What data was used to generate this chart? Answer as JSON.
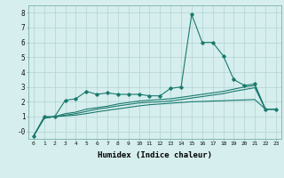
{
  "title": "",
  "xlabel": "Humidex (Indice chaleur)",
  "x": [
    0,
    1,
    2,
    3,
    4,
    5,
    6,
    7,
    8,
    9,
    10,
    11,
    12,
    13,
    14,
    15,
    16,
    17,
    18,
    19,
    20,
    21,
    22,
    23
  ],
  "line1": [
    -0.3,
    1.0,
    1.0,
    2.1,
    2.2,
    2.7,
    2.5,
    2.6,
    2.5,
    2.5,
    2.5,
    2.4,
    2.4,
    2.9,
    3.0,
    7.9,
    6.0,
    6.0,
    5.1,
    3.5,
    3.1,
    3.2,
    1.5,
    1.5
  ],
  "line2": [
    -0.3,
    0.9,
    1.0,
    1.2,
    1.3,
    1.5,
    1.6,
    1.7,
    1.85,
    1.95,
    2.05,
    2.1,
    2.15,
    2.2,
    2.3,
    2.4,
    2.5,
    2.6,
    2.7,
    2.85,
    3.0,
    3.1,
    1.5,
    1.5
  ],
  "line3": [
    -0.3,
    0.9,
    1.0,
    1.1,
    1.2,
    1.35,
    1.5,
    1.6,
    1.72,
    1.82,
    1.92,
    1.97,
    2.0,
    2.05,
    2.15,
    2.25,
    2.35,
    2.45,
    2.55,
    2.7,
    2.82,
    2.95,
    1.5,
    1.5
  ],
  "line4": [
    -0.3,
    0.9,
    1.0,
    1.05,
    1.1,
    1.2,
    1.32,
    1.42,
    1.52,
    1.62,
    1.72,
    1.8,
    1.85,
    1.9,
    1.95,
    2.0,
    2.02,
    2.05,
    2.07,
    2.1,
    2.12,
    2.15,
    1.5,
    1.5
  ],
  "bg_color": "#d6eeee",
  "line_color": "#1a7a6e",
  "grid_color": "#b8d8d8",
  "ylim": [
    -0.5,
    8.5
  ],
  "xlim": [
    -0.5,
    23.5
  ]
}
